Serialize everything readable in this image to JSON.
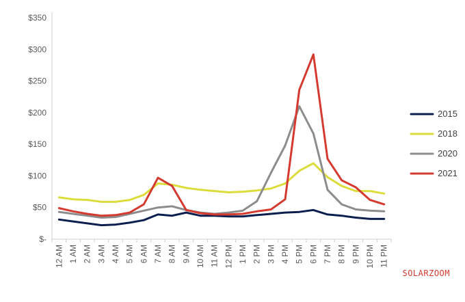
{
  "chart_data": {
    "type": "line",
    "title": "",
    "xlabel": "",
    "ylabel": "",
    "ylim": [
      0,
      350
    ],
    "yticks": [
      0,
      50,
      100,
      150,
      200,
      250,
      300,
      350
    ],
    "ytick_labels": [
      "$-",
      "$50",
      "$100",
      "$150",
      "$200",
      "$250",
      "$300",
      "$350"
    ],
    "grid": false,
    "legend_position": "right",
    "categories": [
      "12 AM",
      "1 AM",
      "2 AM",
      "3 AM",
      "4 AM",
      "5 AM",
      "6 AM",
      "7 AM",
      "8 AM",
      "9 AM",
      "10 AM",
      "11 AM",
      "12 PM",
      "1 PM",
      "2 PM",
      "3 PM",
      "4 PM",
      "5 PM",
      "6 PM",
      "7 PM",
      "8 PM",
      "9 PM",
      "10 PM",
      "11 PM"
    ],
    "series": [
      {
        "name": "2015",
        "color": "#0b1f4f",
        "values": [
          31,
          28,
          25,
          22,
          23,
          26,
          30,
          39,
          37,
          42,
          37,
          37,
          36,
          36,
          38,
          40,
          42,
          43,
          46,
          39,
          37,
          34,
          32,
          32
        ]
      },
      {
        "name": "2018",
        "color": "#dcdc3c",
        "values": [
          66,
          63,
          62,
          59,
          59,
          62,
          70,
          88,
          86,
          81,
          78,
          76,
          74,
          75,
          77,
          80,
          88,
          108,
          120,
          98,
          84,
          76,
          76,
          72
        ]
      },
      {
        "name": "2020",
        "color": "#8c8c8c",
        "values": [
          43,
          40,
          37,
          34,
          35,
          40,
          45,
          50,
          52,
          46,
          42,
          40,
          42,
          45,
          60,
          105,
          148,
          210,
          167,
          78,
          55,
          47,
          45,
          44
        ]
      },
      {
        "name": "2021",
        "color": "#d43a2f",
        "values": [
          49,
          44,
          40,
          37,
          38,
          42,
          55,
          97,
          84,
          46,
          41,
          39,
          39,
          40,
          44,
          47,
          63,
          236,
          292,
          127,
          93,
          82,
          62,
          55
        ]
      }
    ]
  },
  "watermark": "SOLARZOOM"
}
